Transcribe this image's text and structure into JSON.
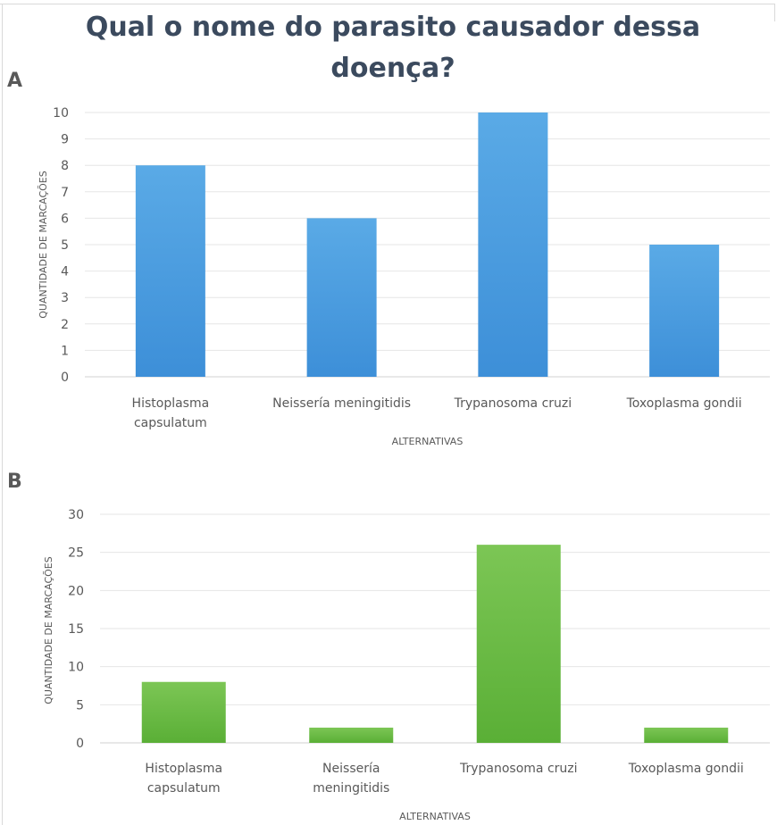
{
  "title_line1": "Qual o nome do parasito causador dessa",
  "title_line2": "doença?",
  "panel_a_label": "A",
  "panel_b_label": "B",
  "chart_data": [
    {
      "type": "bar",
      "panel": "A",
      "categories": [
        [
          "Histoplasma",
          "capsulatum"
        ],
        [
          "Neissería meningitidis"
        ],
        [
          "Trypanosoma cruzi"
        ],
        [
          "Toxoplasma gondii"
        ]
      ],
      "values": [
        8,
        6,
        10,
        5
      ],
      "xlabel": "ALTERNATIVAS",
      "ylabel": "QUANTIDADE DE MARCAÇÕES",
      "ylim": [
        0,
        10
      ],
      "yticks": [
        0,
        1,
        2,
        3,
        4,
        5,
        6,
        7,
        8,
        9,
        10
      ],
      "grid": true,
      "color": "#4a9de0"
    },
    {
      "type": "bar",
      "panel": "B",
      "categories": [
        [
          "Histoplasma",
          "capsulatum"
        ],
        [
          "Neissería",
          "meningitidis"
        ],
        [
          "Trypanosoma cruzi"
        ],
        [
          "Toxoplasma gondii"
        ]
      ],
      "values": [
        8,
        2,
        26,
        2
      ],
      "xlabel": "ALTERNATIVAS",
      "ylabel": "QUANTIDADE DE MARCAÇÕES",
      "ylim": [
        0,
        30
      ],
      "yticks": [
        0,
        5,
        10,
        15,
        20,
        25,
        30
      ],
      "grid": true,
      "color": "#6dbd45"
    }
  ]
}
